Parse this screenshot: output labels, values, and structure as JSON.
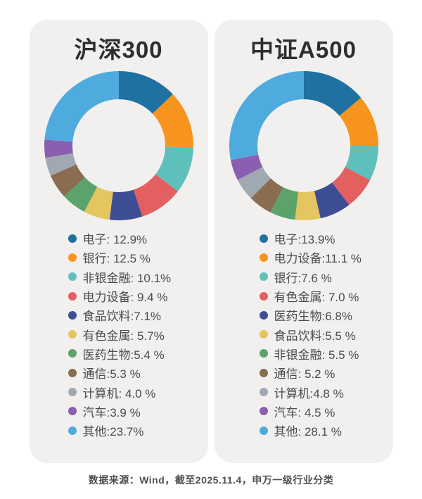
{
  "footer": "数据来源：Wind，截至2025.11.4，申万一级行业分类",
  "chart_data": [
    {
      "type": "pie",
      "donut": true,
      "title": "沪深300",
      "start_angle": "top",
      "direction": "clockwise",
      "legend_position": "bottom",
      "items": [
        {
          "label": "电子",
          "value": 12.9,
          "display": "电子: 12.9%",
          "color": "#1e71a1"
        },
        {
          "label": "银行",
          "value": 12.5,
          "display": "银行: 12.5 %",
          "color": "#f7941e"
        },
        {
          "label": "非银金融",
          "value": 10.1,
          "display": "非银金融: 10.1%",
          "color": "#5fc0bb"
        },
        {
          "label": "电力设备",
          "value": 9.4,
          "display": "电力设备: 9.4 %",
          "color": "#e45f60"
        },
        {
          "label": "食品饮料",
          "value": 7.1,
          "display": "食品饮料:7.1%",
          "color": "#3d4e94"
        },
        {
          "label": "有色金属",
          "value": 5.7,
          "display": "有色金属: 5.7%",
          "color": "#e5c55f"
        },
        {
          "label": "医药生物",
          "value": 5.4,
          "display": "医药生物:5.4 %",
          "color": "#5ba36b"
        },
        {
          "label": "通信",
          "value": 5.3,
          "display": "通信:5.3 %",
          "color": "#8a6c50"
        },
        {
          "label": "计算机",
          "value": 4.0,
          "display": "计算机: 4.0 %",
          "color": "#a0a8b2"
        },
        {
          "label": "汽车",
          "value": 3.9,
          "display": "汽车:3.9 %",
          "color": "#8a5fb0"
        },
        {
          "label": "其他",
          "value": 23.7,
          "display": "其他:23.7%",
          "color": "#4faade"
        }
      ]
    },
    {
      "type": "pie",
      "donut": true,
      "title": "中证A500",
      "start_angle": "top",
      "direction": "clockwise",
      "legend_position": "bottom",
      "items": [
        {
          "label": "电子",
          "value": 13.9,
          "display": "电子:13.9%",
          "color": "#1e71a1"
        },
        {
          "label": "电力设备",
          "value": 11.1,
          "display": "电力设备:11.1 %",
          "color": "#f7941e"
        },
        {
          "label": "银行",
          "value": 7.6,
          "display": "银行:7.6 %",
          "color": "#5fc0bb"
        },
        {
          "label": "有色金属",
          "value": 7.0,
          "display": "有色金属: 7.0 %",
          "color": "#e45f60"
        },
        {
          "label": "医药生物",
          "value": 6.8,
          "display": "医药生物:6.8%",
          "color": "#3d4e94"
        },
        {
          "label": "食品饮料",
          "value": 5.5,
          "display": "食品饮料:5.5 %",
          "color": "#e5c55f"
        },
        {
          "label": "非银金融",
          "value": 5.5,
          "display": "非银金融: 5.5 %",
          "color": "#5ba36b"
        },
        {
          "label": "通信",
          "value": 5.2,
          "display": "通信: 5.2 %",
          "color": "#8a6c50"
        },
        {
          "label": "计算机",
          "value": 4.8,
          "display": "计算机:4.8 %",
          "color": "#a0a8b2"
        },
        {
          "label": "汽车",
          "value": 4.5,
          "display": "汽车: 4.5 %",
          "color": "#8a5fb0"
        },
        {
          "label": "其他",
          "value": 28.1,
          "display": "其他: 28.1 %",
          "color": "#4faade"
        }
      ]
    }
  ]
}
